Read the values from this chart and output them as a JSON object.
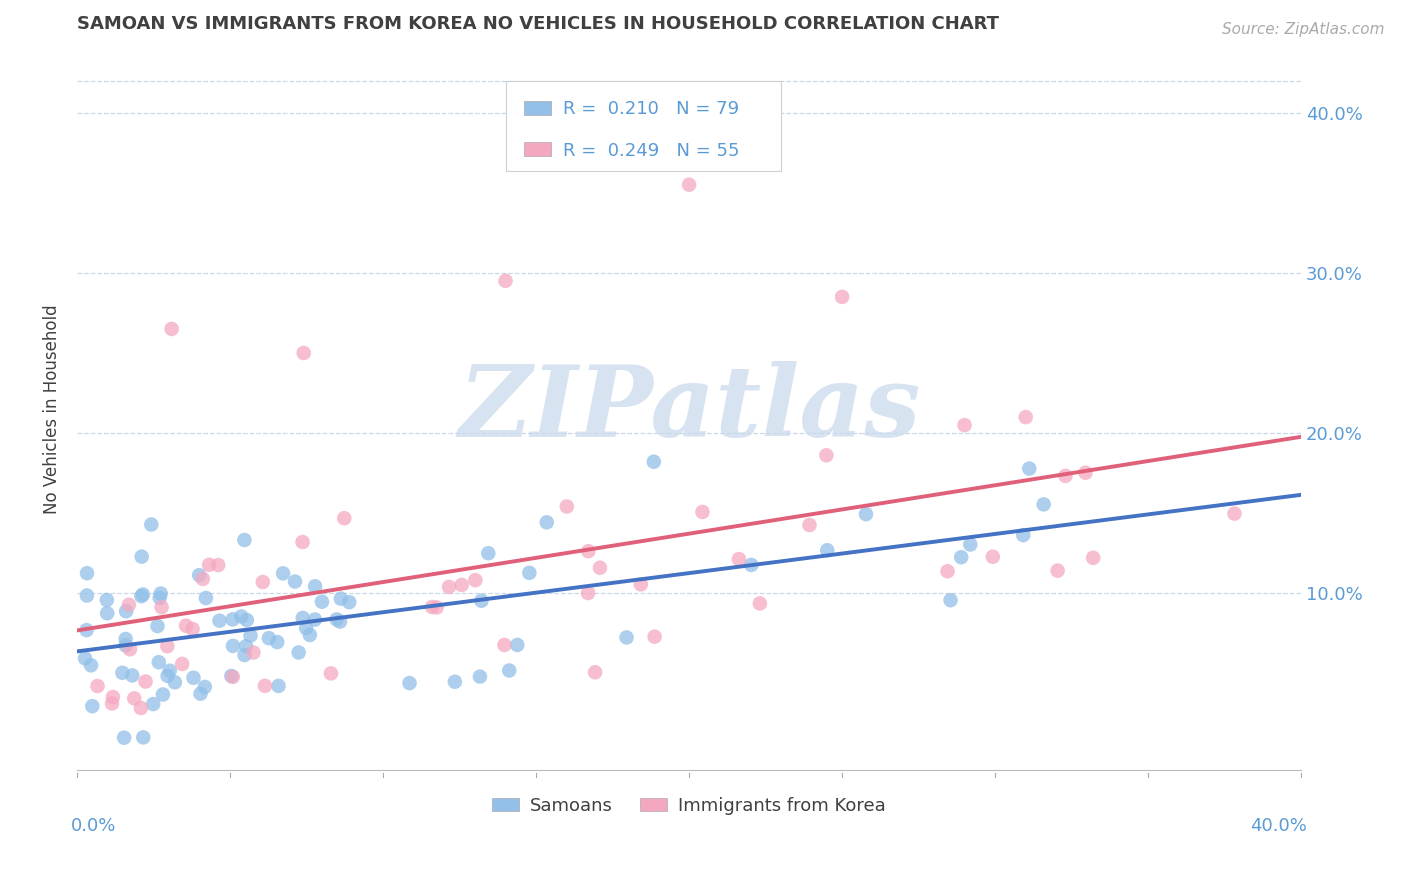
{
  "title": "SAMOAN VS IMMIGRANTS FROM KOREA NO VEHICLES IN HOUSEHOLD CORRELATION CHART",
  "source": "Source: ZipAtlas.com",
  "ylabel": "No Vehicles in Household",
  "xlim": [
    0.0,
    0.4
  ],
  "ylim": [
    -0.01,
    0.44
  ],
  "yticks": [
    0.1,
    0.2,
    0.3,
    0.4
  ],
  "ytick_labels": [
    "10.0%",
    "20.0%",
    "30.0%",
    "40.0%"
  ],
  "series1_name": "Samoans",
  "series1_color": "#92c0e8",
  "series1_line_color": "#4472c4",
  "series1_R": "0.210",
  "series1_N": "79",
  "series2_name": "Immigrants from Korea",
  "series2_color": "#f4a8c0",
  "series2_line_color": "#e0607a",
  "series2_R": "0.249",
  "series2_N": "55",
  "watermark_text": "ZIPatlas",
  "watermark_color": "#c8d8ec",
  "background_color": "#ffffff",
  "title_color": "#404040",
  "axis_label_color": "#5b9bd5",
  "grid_color": "#c8d8e8",
  "legend_text_color_1": "#5b9bd5",
  "legend_text_color_2": "#e0607a"
}
